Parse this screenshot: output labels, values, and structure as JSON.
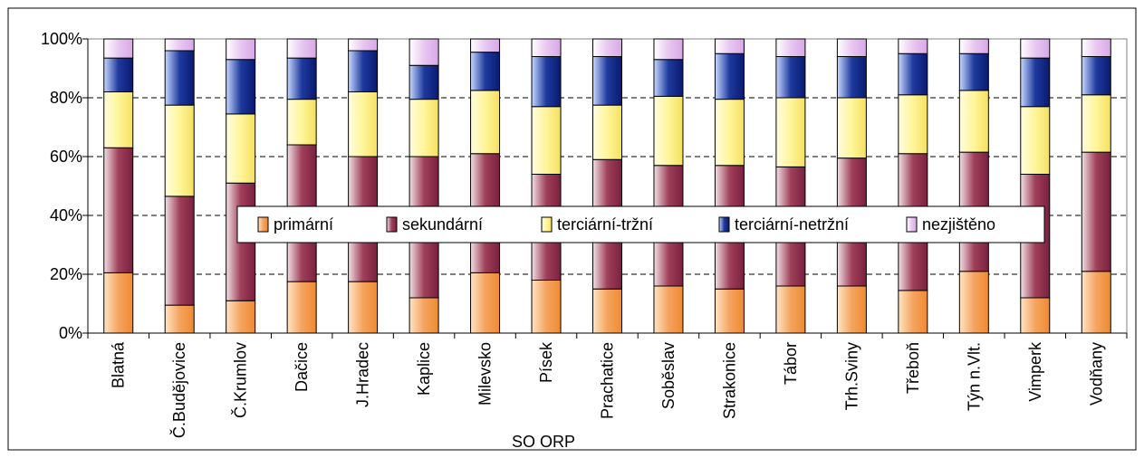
{
  "chart_data": {
    "type": "bar",
    "stacked": true,
    "percent": true,
    "xlabel": "SO ORP",
    "ylabel": "",
    "ylim": [
      0,
      100
    ],
    "yticks": [
      "0%",
      "20%",
      "40%",
      "60%",
      "80%",
      "100%"
    ],
    "grid": true,
    "legend_position": "center",
    "categories": [
      "Blatná",
      "Č.Budějovice",
      "Č.Krumlov",
      "Dačice",
      "J.Hradec",
      "Kaplice",
      "Milevsko",
      "Písek",
      "Prachatice",
      "Soběslav",
      "Strakonice",
      "Tábor",
      "Trh.Sviny",
      "Třeboň",
      "Týn n.Vlt.",
      "Vimperk",
      "Vodňany"
    ],
    "series": [
      {
        "name": "primární",
        "color": "#F4A460",
        "values": [
          20.5,
          9.5,
          11,
          17.5,
          17.5,
          12,
          20.5,
          18,
          15,
          16,
          15,
          16,
          16,
          14.5,
          21,
          12,
          21
        ]
      },
      {
        "name": "sekundární",
        "color": "#A0405A",
        "values": [
          42.5,
          37,
          40,
          46.5,
          42.5,
          48,
          40.5,
          36,
          44,
          41,
          42,
          40.5,
          43.5,
          46.5,
          40.5,
          42,
          40.5
        ]
      },
      {
        "name": "terciární-tržní",
        "color": "#FFF59A",
        "values": [
          19,
          31,
          23.5,
          15.5,
          22,
          19.5,
          21.5,
          23,
          18.5,
          23.5,
          22.5,
          23.5,
          20.5,
          20,
          21,
          23,
          19.5
        ]
      },
      {
        "name": "terciární-netržní",
        "color": "#1E3A9E",
        "values": [
          11.5,
          18.5,
          18.5,
          14,
          14,
          11.5,
          13,
          17,
          16.5,
          12.5,
          15.5,
          14,
          14,
          14,
          12.5,
          16.5,
          13
        ]
      },
      {
        "name": "nezjištěno",
        "color": "#E8C8F0",
        "values": [
          6.5,
          4,
          7,
          6.5,
          4,
          9,
          4.5,
          6,
          6,
          7,
          5,
          6,
          6,
          5,
          5,
          6.5,
          6
        ]
      }
    ]
  }
}
